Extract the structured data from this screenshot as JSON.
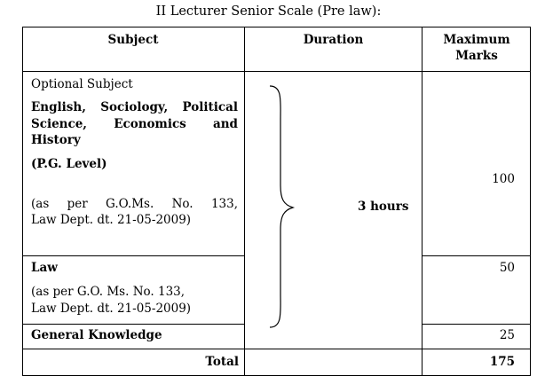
{
  "title": "II Lecturer Senior Scale (Pre law):",
  "headers": {
    "subject": "Subject",
    "duration": "Duration",
    "max_marks_line1": "Maximum",
    "max_marks_line2": "Marks"
  },
  "rows": {
    "optional": {
      "label": "Optional Subject",
      "subjects_line1": "English, Sociology, Political",
      "subjects_line2": "Science, Economics and",
      "subjects_line3": "History",
      "level": "(P.G. Level)",
      "note_line1": "(as per G.O.Ms. No. 133,",
      "note_line2": "Law Dept. dt. 21-05-2009)",
      "marks": "100"
    },
    "law": {
      "label": "Law",
      "note_line1": "(as per G.O. Ms. No. 133,",
      "note_line2": "Law Dept. dt. 21-05-2009)",
      "marks": "50"
    },
    "gk": {
      "label": "General Knowledge",
      "marks": "25"
    },
    "total": {
      "label": "Total",
      "marks": "175"
    }
  },
  "duration": "3 hours"
}
